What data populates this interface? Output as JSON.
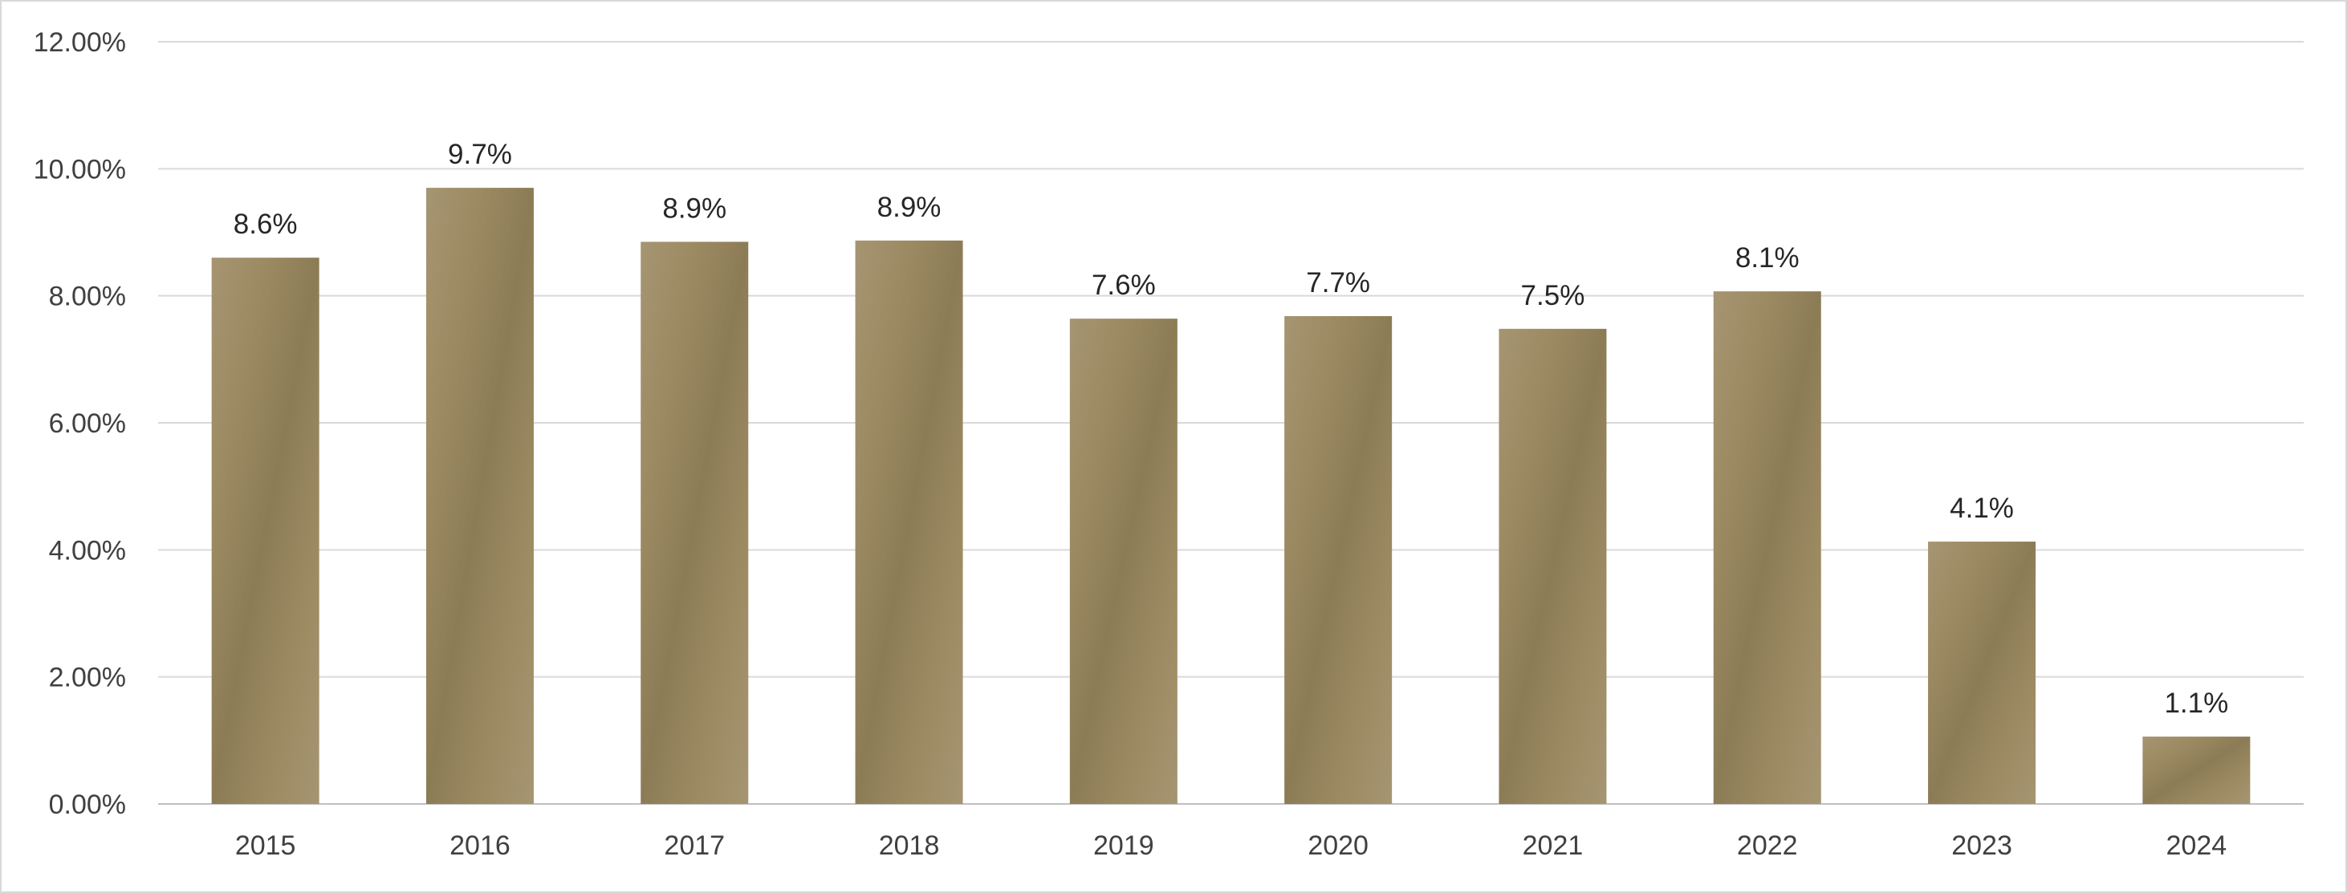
{
  "chart_data": {
    "type": "bar",
    "categories": [
      "2015",
      "2016",
      "2017",
      "2018",
      "2019",
      "2020",
      "2021",
      "2022",
      "2023",
      "2024"
    ],
    "values": [
      8.6,
      9.7,
      8.85,
      8.87,
      7.64,
      7.68,
      7.48,
      8.07,
      4.13,
      1.06
    ],
    "data_labels": [
      "8.6%",
      "9.7%",
      "8.9%",
      "8.9%",
      "7.6%",
      "7.7%",
      "7.5%",
      "8.1%",
      "4.1%",
      "1.1%"
    ],
    "y_ticks": [
      0,
      2,
      4,
      6,
      8,
      10,
      12
    ],
    "y_tick_labels": [
      "0.00%",
      "2.00%",
      "4.00%",
      "6.00%",
      "8.00%",
      "10.00%",
      "12.00%"
    ],
    "ylim": [
      0,
      12
    ],
    "grid": true,
    "legend": "none",
    "title": "",
    "xlabel": "",
    "ylabel": "",
    "colors": {
      "bar_light": "#a69572",
      "bar_dark": "#8c7c56",
      "gridline": "#d9d9d9",
      "text": "#404040"
    }
  }
}
